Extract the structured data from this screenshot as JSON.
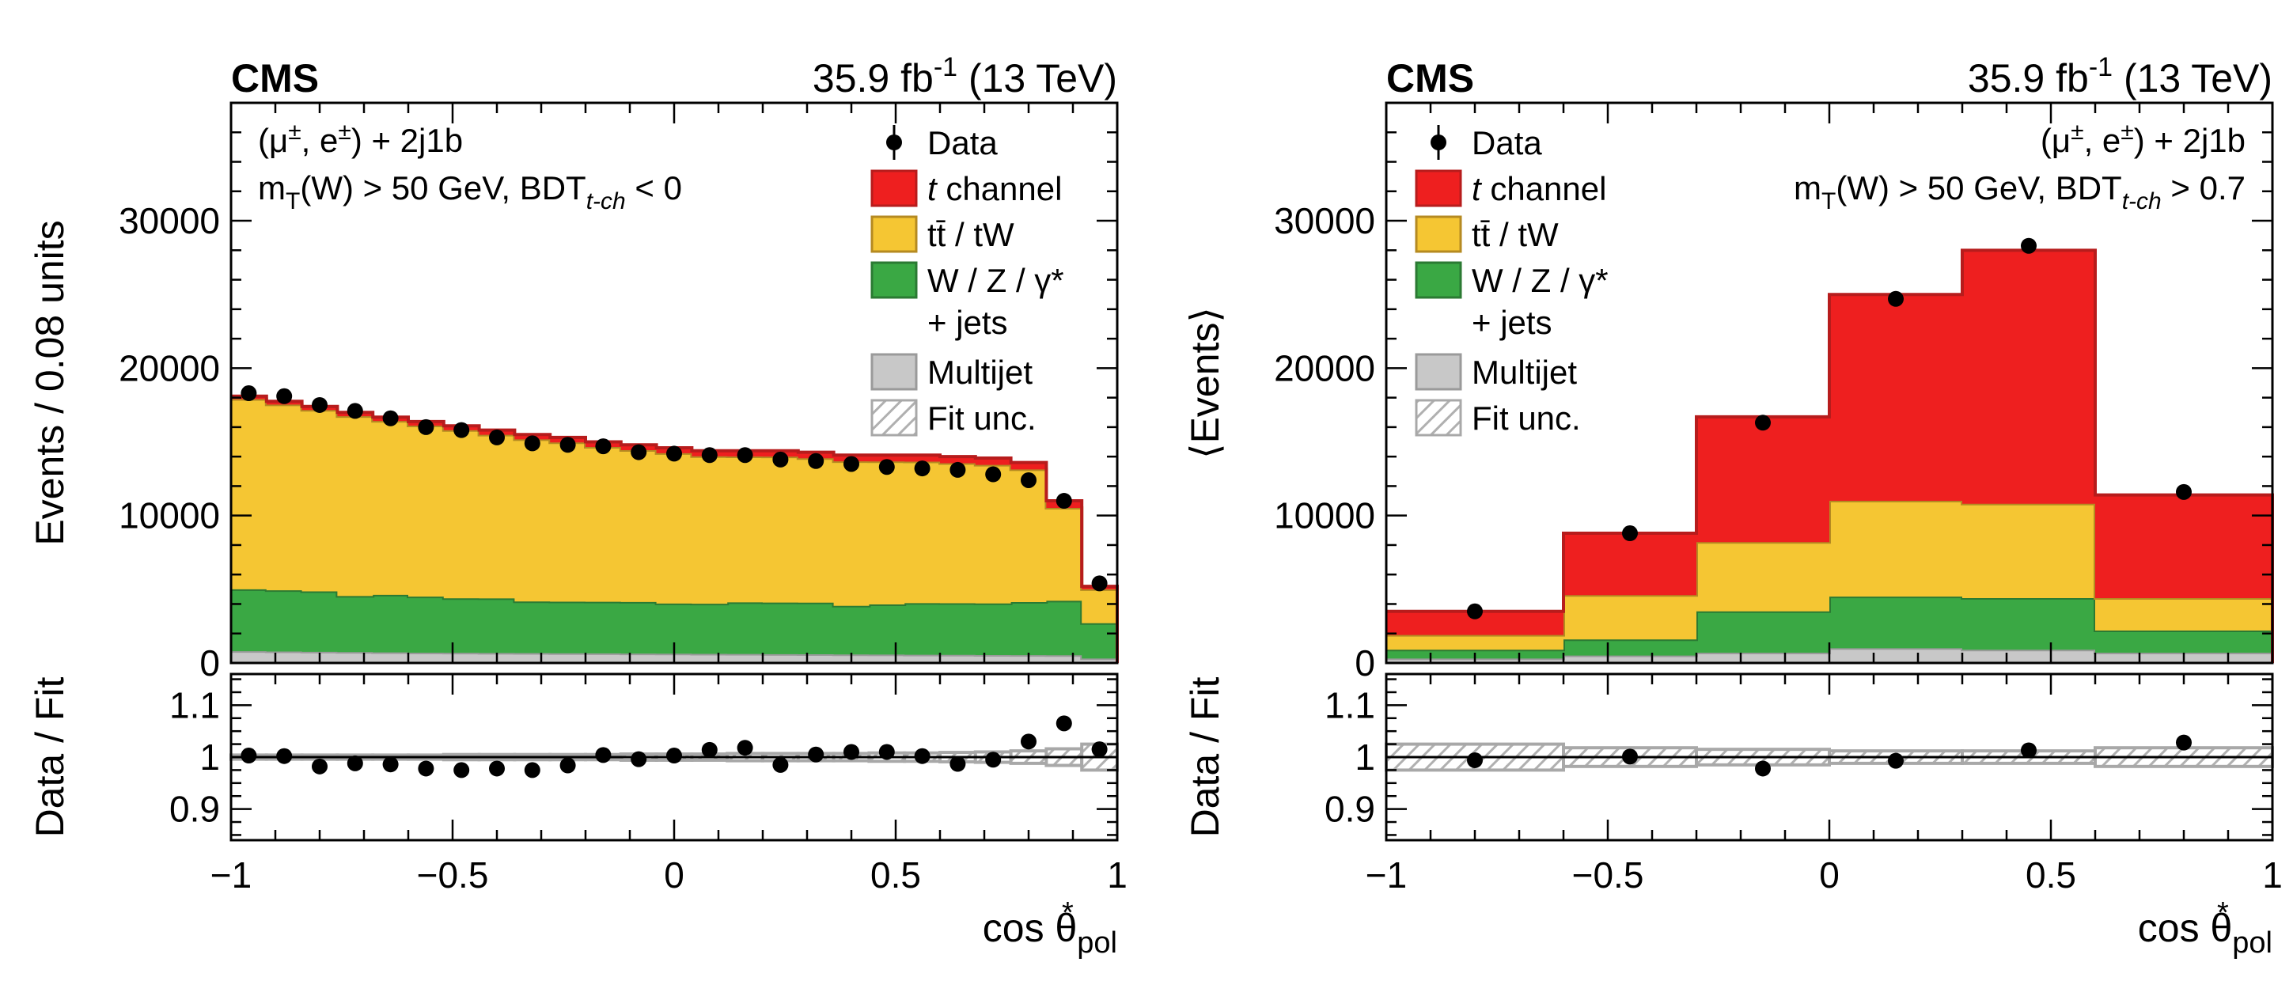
{
  "colors": {
    "tch": "#ee1f1f",
    "tch_edge": "#b71c1c",
    "ttbar": "#f5c633",
    "ttbar_edge": "#b58a21",
    "wzjets": "#3aa844",
    "wzjets_edge": "#2b7a33",
    "multijet": "#c8c8c8",
    "multijet_edge": "#9a9a9a",
    "unc": "#a8a8a8"
  },
  "chart_data": [
    {
      "type": "histogram-stacked",
      "panel": "left",
      "header": {
        "experiment": "CMS",
        "lumi_prefix": "35.9 fb",
        "lumi_exp": "-1",
        "energy": "(13 TeV)"
      },
      "labels": {
        "region_line1": "(μ±, e±) + 2j1b",
        "region_line2_pre": "m",
        "region_line2_sub1": "T",
        "region_line2_mid": "(W) > 50 GeV, BDT",
        "region_line2_sub2": "t-ch",
        "region_line2_post": " < 0"
      },
      "ylabel": "Events / 0.08 units",
      "ratio_ylabel": "Data / Fit",
      "xlabel_base": "cos θ",
      "xlabel_sup": "*",
      "xlabel_sub": "pol",
      "xlim": [
        -1,
        1
      ],
      "ylim": [
        0,
        38000
      ],
      "ratio_ylim": [
        0.84,
        1.16
      ],
      "x_ticks": [
        -1,
        -0.5,
        0,
        0.5,
        1
      ],
      "x_tick_labels": [
        "−1",
        "−0.5",
        "0",
        "0.5",
        "1"
      ],
      "y_ticks": [
        0,
        10000,
        20000,
        30000
      ],
      "y_tick_labels": [
        "0",
        "10000",
        "20000",
        "30000"
      ],
      "ratio_ticks": [
        0.9,
        1,
        1.1
      ],
      "ratio_tick_labels": [
        "0.9",
        "1",
        "1.1"
      ],
      "bin_edges": [
        -1,
        -0.92,
        -0.84,
        -0.76,
        -0.68,
        -0.6,
        -0.52,
        -0.44,
        -0.36,
        -0.28,
        -0.2,
        -0.12,
        -0.04,
        0.04,
        0.12,
        0.2,
        0.28,
        0.36,
        0.44,
        0.52,
        0.6,
        0.68,
        0.76,
        0.84,
        0.92,
        1
      ],
      "series": [
        {
          "name": "Multijet",
          "color_key": "multijet",
          "values": [
            800,
            780,
            760,
            740,
            720,
            700,
            690,
            680,
            670,
            660,
            650,
            640,
            630,
            620,
            610,
            600,
            590,
            580,
            570,
            560,
            550,
            540,
            530,
            520,
            300
          ]
        },
        {
          "name": "W / Z / γ* + jets",
          "color_key": "wzjets",
          "values": [
            4200,
            4150,
            4100,
            3800,
            3900,
            3800,
            3700,
            3700,
            3500,
            3500,
            3500,
            3500,
            3400,
            3400,
            3500,
            3500,
            3500,
            3300,
            3400,
            3500,
            3500,
            3500,
            3600,
            3700,
            2400
          ]
        },
        {
          "name": "tt̄ / tW",
          "color_key": "ttbar",
          "values": [
            12900,
            12600,
            12300,
            12200,
            11800,
            11600,
            11400,
            11100,
            11000,
            10800,
            10500,
            10300,
            10200,
            10000,
            9900,
            9900,
            9800,
            9800,
            9700,
            9600,
            9500,
            9400,
            9000,
            6300,
            2300
          ]
        },
        {
          "name": "t channel",
          "color_key": "tch",
          "values": [
            200,
            220,
            240,
            260,
            260,
            280,
            300,
            320,
            330,
            340,
            350,
            360,
            370,
            380,
            390,
            400,
            410,
            420,
            430,
            440,
            450,
            460,
            470,
            480,
            200
          ]
        }
      ],
      "data": {
        "x": [
          -0.96,
          -0.88,
          -0.8,
          -0.72,
          -0.64,
          -0.56,
          -0.48,
          -0.4,
          -0.32,
          -0.24,
          -0.16,
          -0.08,
          0,
          0.08,
          0.16,
          0.24,
          0.32,
          0.4,
          0.48,
          0.56,
          0.64,
          0.72,
          0.8,
          0.88,
          0.96
        ],
        "y": [
          18300,
          18100,
          17500,
          17100,
          16600,
          16000,
          15800,
          15300,
          14900,
          14800,
          14700,
          14300,
          14200,
          14100,
          14100,
          13800,
          13700,
          13500,
          13300,
          13200,
          13100,
          12800,
          12400,
          11000,
          5400
        ]
      },
      "ratio": {
        "x": [
          -0.96,
          -0.88,
          -0.8,
          -0.72,
          -0.64,
          -0.56,
          -0.48,
          -0.4,
          -0.32,
          -0.24,
          -0.16,
          -0.08,
          0,
          0.08,
          0.16,
          0.24,
          0.32,
          0.4,
          0.48,
          0.56,
          0.64,
          0.72,
          0.8,
          0.88,
          0.96
        ],
        "y": [
          1.003,
          1.002,
          0.982,
          0.988,
          0.986,
          0.978,
          0.975,
          0.978,
          0.975,
          0.984,
          1.004,
          0.996,
          1.003,
          1.014,
          1.018,
          0.985,
          1.005,
          1.01,
          1.01,
          1.002,
          0.987,
          0.995,
          1.03,
          1.065,
          1.015
        ],
        "unc": [
          0.004,
          0.004,
          0.004,
          0.004,
          0.004,
          0.004,
          0.005,
          0.005,
          0.005,
          0.005,
          0.005,
          0.006,
          0.006,
          0.006,
          0.007,
          0.007,
          0.007,
          0.007,
          0.008,
          0.008,
          0.009,
          0.01,
          0.012,
          0.016,
          0.025
        ]
      },
      "legend": {
        "placement": "top-right",
        "data_label": "Data",
        "entries": [
          {
            "label_italic": "t",
            "label": " channel",
            "color_key": "tch"
          },
          {
            "label": "tt̄ / tW",
            "color_key": "ttbar"
          },
          {
            "label": "W / Z / γ*",
            "label2": "+ jets",
            "color_key": "wzjets"
          },
          {
            "label": "Multijet",
            "color_key": "multijet"
          },
          {
            "label": "Fit unc.",
            "color_key": "unc",
            "hatched": true
          }
        ]
      }
    },
    {
      "type": "histogram-stacked",
      "panel": "right",
      "header": {
        "experiment": "CMS",
        "lumi_prefix": "35.9 fb",
        "lumi_exp": "-1",
        "energy": "(13 TeV)"
      },
      "labels": {
        "region_line1": "(μ±, e±) + 2j1b",
        "region_line2_pre": "m",
        "region_line2_sub1": "T",
        "region_line2_mid": "(W) > 50 GeV, BDT",
        "region_line2_sub2": "t-ch",
        "region_line2_post": " > 0.7"
      },
      "ylabel": "⟨Events⟩",
      "ratio_ylabel": "Data / Fit",
      "xlabel_base": "cos θ",
      "xlabel_sup": "*",
      "xlabel_sub": "pol",
      "xlim": [
        -1,
        1
      ],
      "ylim": [
        0,
        38000
      ],
      "ratio_ylim": [
        0.84,
        1.16
      ],
      "x_ticks": [
        -1,
        -0.5,
        0,
        0.5,
        1
      ],
      "x_tick_labels": [
        "−1",
        "−0.5",
        "0",
        "0.5",
        "1"
      ],
      "y_ticks": [
        0,
        10000,
        20000,
        30000
      ],
      "y_tick_labels": [
        "0",
        "10000",
        "20000",
        "30000"
      ],
      "ratio_ticks": [
        0.9,
        1,
        1.1
      ],
      "ratio_tick_labels": [
        "0.9",
        "1",
        "1.1"
      ],
      "bin_edges": [
        -1,
        -0.6,
        -0.3,
        0,
        0.3,
        0.6,
        1
      ],
      "series": [
        {
          "name": "Multijet",
          "color_key": "multijet",
          "values": [
            300,
            500,
            700,
            1000,
            900,
            700
          ]
        },
        {
          "name": "W / Z / γ* + jets",
          "color_key": "wzjets",
          "values": [
            600,
            1100,
            2800,
            3500,
            3500,
            1500
          ]
        },
        {
          "name": "tt̄ / tW",
          "color_key": "ttbar",
          "values": [
            1000,
            3000,
            4700,
            6500,
            6400,
            2200
          ]
        },
        {
          "name": "t channel",
          "color_key": "tch",
          "values": [
            1600,
            4200,
            8500,
            14000,
            17200,
            7000
          ]
        }
      ],
      "data": {
        "x": [
          -0.8,
          -0.45,
          -0.15,
          0.15,
          0.45,
          0.8
        ],
        "y": [
          3500,
          8800,
          16300,
          24700,
          28300,
          11600
        ]
      },
      "ratio": {
        "x": [
          -0.8,
          -0.45,
          -0.15,
          0.15,
          0.45,
          0.8
        ],
        "y": [
          0.994,
          1.001,
          0.978,
          0.993,
          1.013,
          1.028
        ],
        "unc": [
          0.025,
          0.018,
          0.015,
          0.012,
          0.012,
          0.018
        ]
      },
      "legend": {
        "placement": "top-left",
        "data_label": "Data",
        "entries": [
          {
            "label_italic": "t",
            "label": " channel",
            "color_key": "tch"
          },
          {
            "label": "tt̄ / tW",
            "color_key": "ttbar"
          },
          {
            "label": "W / Z / γ*",
            "label2": "+ jets",
            "color_key": "wzjets"
          },
          {
            "label": "Multijet",
            "color_key": "multijet"
          },
          {
            "label": "Fit unc.",
            "color_key": "unc",
            "hatched": true
          }
        ]
      }
    }
  ]
}
